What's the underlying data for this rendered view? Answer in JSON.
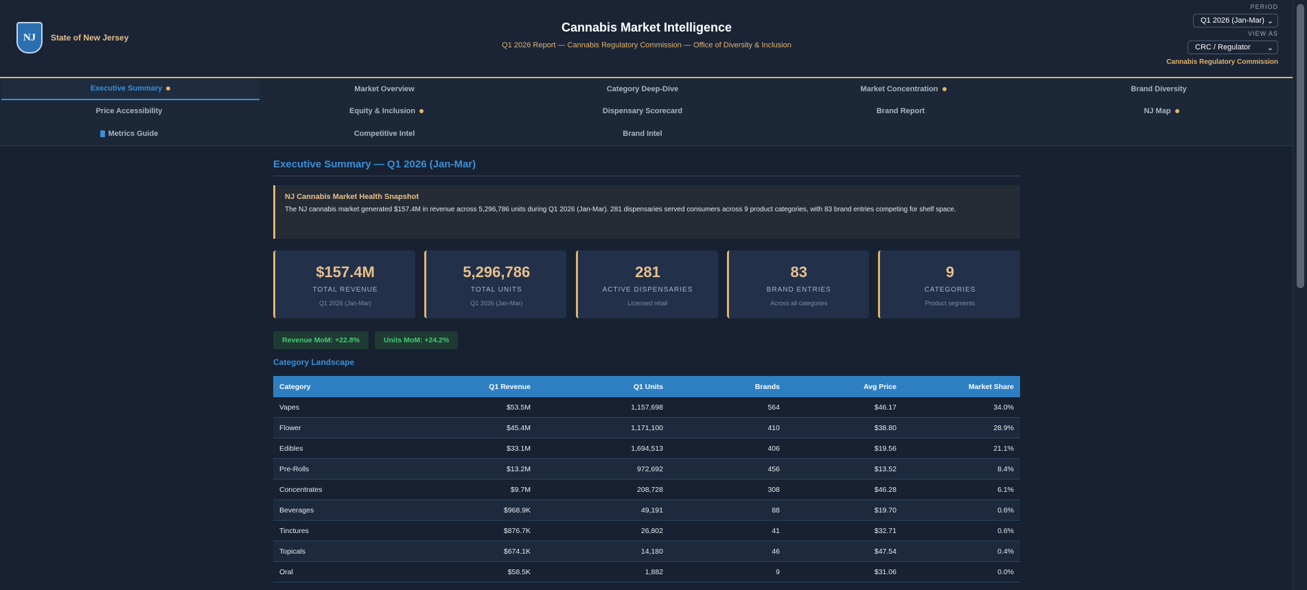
{
  "header": {
    "state_badge": "NJ",
    "state_name": "State of New Jersey",
    "title": "Cannabis Market Intelligence",
    "subtitle": "Q1 2026 Report — Cannabis Regulatory Commission — Office of Diversity & Inclusion",
    "period_label": "PERIOD",
    "period_value": "Q1 2026 (Jan-Mar)",
    "view_label": "VIEW AS",
    "view_value": "CRC / Regulator",
    "org_label": "Cannabis Regulatory Commission"
  },
  "tabs": [
    {
      "label": "Executive Summary",
      "active": true,
      "dot": true
    },
    {
      "label": "Market Overview"
    },
    {
      "label": "Category Deep-Dive"
    },
    {
      "label": "Market Concentration",
      "dot": true
    },
    {
      "label": "Brand Diversity"
    },
    {
      "label": "Price Accessibility"
    },
    {
      "label": "Equity & Inclusion",
      "dot": true
    },
    {
      "label": "Dispensary Scorecard"
    },
    {
      "label": "Brand Report"
    },
    {
      "label": "NJ Map",
      "dot": true
    },
    {
      "label": "Metrics Guide",
      "icon": "book-icon"
    },
    {
      "label": "Competitive Intel"
    },
    {
      "label": "Brand Intel"
    }
  ],
  "main": {
    "title": "Executive Summary — Q1 2026 (Jan-Mar)",
    "snapshot": {
      "title": "NJ Cannabis Market Health Snapshot",
      "text": "The NJ cannabis market generated $157.4M in revenue across 5,296,786 units during Q1 2026 (Jan-Mar). 281 dispensaries served consumers across 9 product categories, with 83 brand entries competing for shelf space."
    },
    "kpis": [
      {
        "value": "$157.4M",
        "label": "TOTAL REVENUE",
        "sub": "Q1 2026 (Jan-Mar)"
      },
      {
        "value": "5,296,786",
        "label": "TOTAL UNITS",
        "sub": "Q1 2026 (Jan-Mar)"
      },
      {
        "value": "281",
        "label": "ACTIVE DISPENSARIES",
        "sub": "Licensed retail"
      },
      {
        "value": "83",
        "label": "BRAND ENTRIES",
        "sub": "Across all categories"
      },
      {
        "value": "9",
        "label": "CATEGORIES",
        "sub": "Product segments"
      }
    ],
    "pills": [
      "Revenue MoM: +22.8%",
      "Units MoM: +24.2%"
    ],
    "section_title": "Category Landscape",
    "table": {
      "headers": [
        "Category",
        "Q1 Revenue",
        "Q1 Units",
        "Brands",
        "Avg Price",
        "Market Share"
      ],
      "rows": [
        [
          "Vapes",
          "$53.5M",
          "1,157,698",
          "564",
          "$46.17",
          "34.0%"
        ],
        [
          "Flower",
          "$45.4M",
          "1,171,100",
          "410",
          "$38.80",
          "28.9%"
        ],
        [
          "Edibles",
          "$33.1M",
          "1,694,513",
          "406",
          "$19.56",
          "21.1%"
        ],
        [
          "Pre-Rolls",
          "$13.2M",
          "972,692",
          "456",
          "$13.52",
          "8.4%"
        ],
        [
          "Concentrates",
          "$9.7M",
          "208,728",
          "308",
          "$46.28",
          "6.1%"
        ],
        [
          "Beverages",
          "$968.9K",
          "49,191",
          "88",
          "$19.70",
          "0.6%"
        ],
        [
          "Tinctures",
          "$876.7K",
          "26,802",
          "41",
          "$32.71",
          "0.6%"
        ],
        [
          "Topicals",
          "$674.1K",
          "14,180",
          "46",
          "$47.54",
          "0.4%"
        ],
        [
          "Oral",
          "$58.5K",
          "1,882",
          "9",
          "$31.06",
          "0.0%"
        ]
      ]
    }
  }
}
